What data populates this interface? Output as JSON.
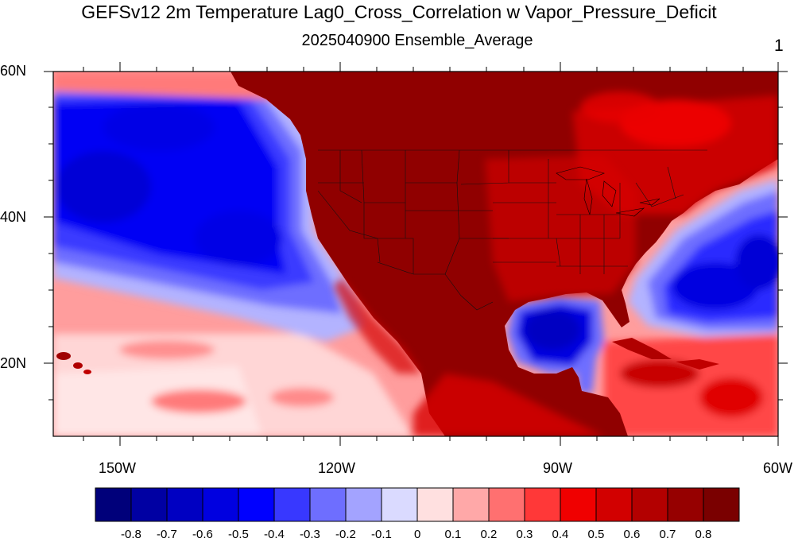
{
  "title": "GEFSv12 2m Temperature Lag0_Cross_Correlation w Vapor_Pressure_Deficit",
  "subtitle": "2025040900 Ensemble_Average",
  "panel_number": "1",
  "map": {
    "region": "North America and adjacent Pacific / Atlantic oceans",
    "lon_range": [
      -160,
      -60
    ],
    "lat_range": [
      10,
      60
    ],
    "lat_ticks": [
      "60N",
      "40N",
      "20N"
    ],
    "lon_ticks": [
      "150W",
      "120W",
      "90W",
      "60W"
    ],
    "projection": "cylindrical equidistant"
  },
  "colorbar": {
    "labels": [
      "-0.8",
      "-0.7",
      "-0.6",
      "-0.5",
      "-0.4",
      "-0.3",
      "-0.2",
      "-0.1",
      "0",
      "0.1",
      "0.2",
      "0.3",
      "0.4",
      "0.5",
      "0.6",
      "0.7",
      "0.8"
    ],
    "colors": [
      "#00007a",
      "#0000a3",
      "#0000c2",
      "#0000e0",
      "#0000ff",
      "#3838ff",
      "#6e6eff",
      "#a3a3ff",
      "#dadaff",
      "#ffe0e0",
      "#ffa8a8",
      "#ff7070",
      "#ff3838",
      "#f00000",
      "#d20000",
      "#b30000",
      "#960000",
      "#7a0000"
    ]
  }
}
